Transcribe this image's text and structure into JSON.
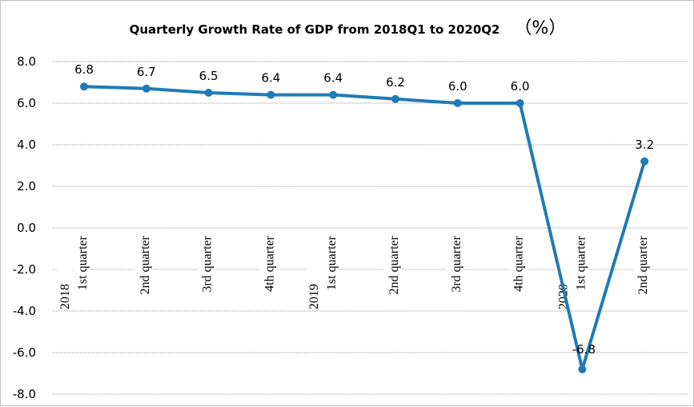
{
  "chart_data": {
    "type": "line",
    "title": "Quarterly Growth Rate of GDP from 2018Q1 to 2020Q2",
    "unit": "（%）",
    "xlabel": "",
    "ylabel": "",
    "ylim": [
      -8.0,
      8.0
    ],
    "y_ticks": [
      "8.0",
      "6.0",
      "4.0",
      "2.0",
      "0.0",
      "-2.0",
      "-4.0",
      "-6.0",
      "-8.0"
    ],
    "y_tick_values": [
      8,
      6,
      4,
      2,
      0,
      -2,
      -4,
      -6,
      -8
    ],
    "grid": true,
    "legend": "none",
    "categories": [
      {
        "year": "2018",
        "quarter": "1st quarter"
      },
      {
        "year": "",
        "quarter": "2nd quarter"
      },
      {
        "year": "",
        "quarter": "3rd quarter"
      },
      {
        "year": "",
        "quarter": "4th quarter"
      },
      {
        "year": "2019",
        "quarter": "1st quarter"
      },
      {
        "year": "",
        "quarter": "2nd quarter"
      },
      {
        "year": "",
        "quarter": "3rd quarter"
      },
      {
        "year": "",
        "quarter": "4th quarter"
      },
      {
        "year": "2020",
        "quarter": "1st quarter"
      },
      {
        "year": "",
        "quarter": "2nd quarter"
      }
    ],
    "series": [
      {
        "values": [
          6.8,
          6.7,
          6.5,
          6.4,
          6.4,
          6.2,
          6.0,
          6.0,
          -6.8,
          3.2
        ],
        "data_labels": [
          "6.8",
          "6.7",
          "6.5",
          "6.4",
          "6.4",
          "6.2",
          "6.0",
          "6.0",
          "-6.8",
          "3.2"
        ],
        "color": "#1f7bb5"
      }
    ]
  }
}
